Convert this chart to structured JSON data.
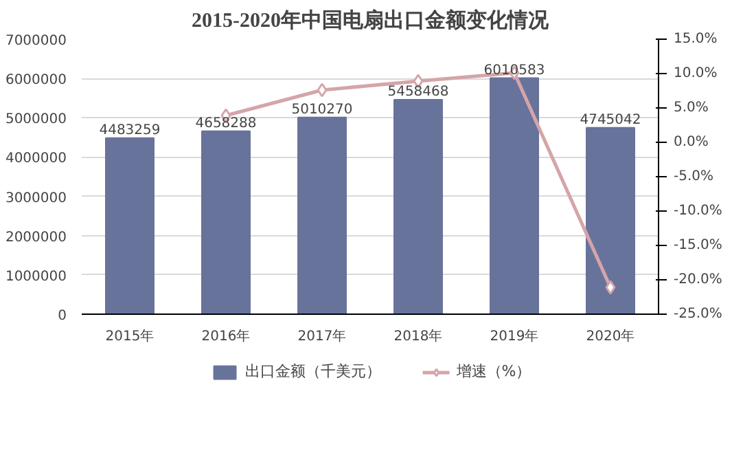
{
  "chart_data": {
    "type": "bar",
    "title": "2015-2020年中国电扇出口金额变化情况",
    "categories": [
      "2015年",
      "2016年",
      "2017年",
      "2018年",
      "2019年",
      "2020年"
    ],
    "series": [
      {
        "name": "出口金额（千美元）",
        "color": "#68739c",
        "values": [
          4483259,
          4658288,
          5010270,
          5458468,
          6010583,
          4745042
        ],
        "value_labels": [
          "4483259",
          "4658288",
          "5010270",
          "5458468",
          "6010583",
          "4745042"
        ]
      },
      {
        "name": "增速（%）",
        "type": "line",
        "axis": "y2",
        "color": "#d4a5a8",
        "marker": "diamond",
        "values": [
          null,
          3.9,
          7.6,
          8.9,
          10.1,
          -21.1
        ]
      }
    ],
    "ylim": [
      0,
      7000000
    ],
    "yticks": [
      0,
      1000000,
      2000000,
      3000000,
      4000000,
      5000000,
      6000000,
      7000000
    ],
    "y2lim": [
      -25,
      15
    ],
    "y2ticks": [
      {
        "value": -25,
        "label": "-25.0%"
      },
      {
        "value": -20,
        "label": "-20.0%"
      },
      {
        "value": -15,
        "label": "-15.0%"
      },
      {
        "value": -10,
        "label": "-10.0%"
      },
      {
        "value": -5,
        "label": "-5.0%"
      },
      {
        "value": 0,
        "label": "0.0%"
      },
      {
        "value": 5,
        "label": "5.0%"
      },
      {
        "value": 10,
        "label": "10.0%"
      },
      {
        "value": 15,
        "label": "15.0%"
      }
    ],
    "grid": "y",
    "legend": "bottom"
  }
}
